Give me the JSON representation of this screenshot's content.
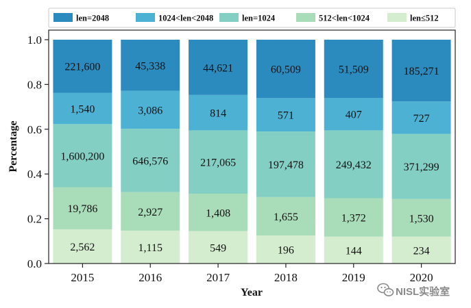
{
  "chart_data": {
    "type": "bar",
    "stacked": true,
    "normalized": true,
    "title": "",
    "xlabel": "Year",
    "ylabel": "Percentage",
    "ylim": [
      0,
      1.0
    ],
    "yticks": [
      "0.0",
      "0.2",
      "0.4",
      "0.6",
      "0.8",
      "1.0"
    ],
    "grid": false,
    "legend_position": "top",
    "categories": [
      "2015",
      "2016",
      "2017",
      "2018",
      "2019",
      "2020"
    ],
    "series": [
      {
        "name": "len≤512",
        "color": "#d4edcf",
        "fractions": [
          0.153,
          0.147,
          0.145,
          0.125,
          0.12,
          0.12
        ],
        "labels": [
          "2,562",
          "1,115",
          "549",
          "196",
          "144",
          "234"
        ]
      },
      {
        "name": "512<len<1024",
        "color": "#a9dcb9",
        "fractions": [
          0.188,
          0.172,
          0.167,
          0.172,
          0.172,
          0.168
        ],
        "labels": [
          "19,786",
          "2,927",
          "1,408",
          "1,655",
          "1,372",
          "1,530"
        ]
      },
      {
        "name": "len=1024",
        "color": "#84cfc3",
        "fractions": [
          0.282,
          0.283,
          0.283,
          0.293,
          0.303,
          0.291
        ],
        "labels": [
          "1,600,200",
          "646,576",
          "217,065",
          "197,478",
          "249,432",
          "371,299"
        ]
      },
      {
        "name": "1024<len<2048",
        "color": "#4db1d3",
        "fractions": [
          0.14,
          0.17,
          0.158,
          0.149,
          0.145,
          0.145
        ],
        "labels": [
          "1,540",
          "3,086",
          "814",
          "571",
          "407",
          "727"
        ]
      },
      {
        "name": "len=2048",
        "color": "#2b8bbf",
        "fractions": [
          0.237,
          0.228,
          0.247,
          0.261,
          0.26,
          0.276
        ],
        "labels": [
          "221,600",
          "45,338",
          "44,621",
          "60,509",
          "51,509",
          "185,271"
        ]
      }
    ],
    "legend_order": [
      "len=2048",
      "1024<len<2048",
      "len=1024",
      "512<len<1024",
      "len≤512"
    ]
  },
  "watermark": {
    "text": "NISL实验室",
    "icon": "wechat-icon"
  }
}
